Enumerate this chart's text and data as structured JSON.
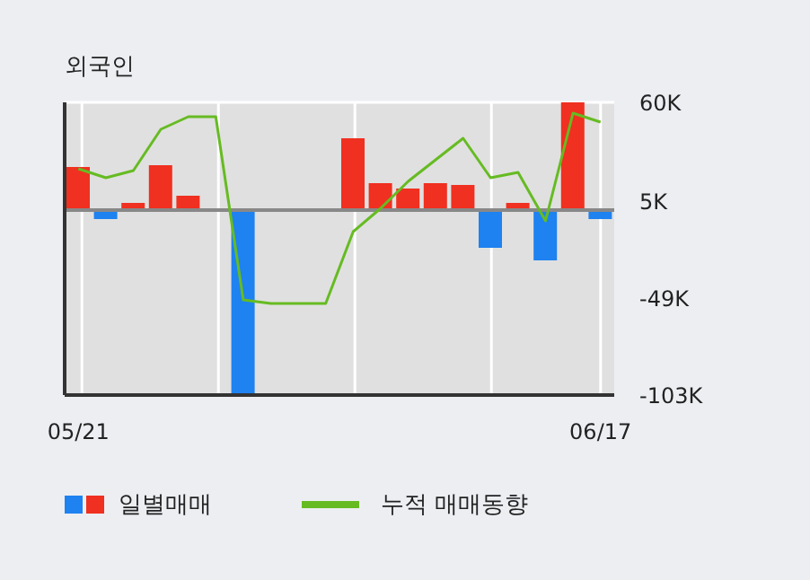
{
  "chart_data": {
    "type": "bar",
    "title": "외국인",
    "categories": [
      "05/21",
      null,
      null,
      null,
      null,
      null,
      null,
      null,
      null,
      null,
      null,
      null,
      null,
      null,
      null,
      null,
      null,
      null,
      null,
      "06/17"
    ],
    "series": [
      {
        "name": "일별매매",
        "colors": [
          "#f03020",
          "#1e82f0",
          "#f03020",
          "#f03020",
          "#f03020",
          "#f03020",
          "#1e82f0",
          "#f03020",
          "#f03020",
          "#f03020",
          "#f03020",
          "#f03020",
          "#f03020",
          "#f03020",
          "#f03020",
          "#1e82f0",
          "#f03020",
          "#1e82f0",
          "#f03020",
          "#1e82f0"
        ],
        "values": [
          24,
          -5,
          4,
          25,
          8,
          0,
          -103,
          0,
          0,
          0,
          40,
          15,
          12,
          15,
          14,
          -21,
          4,
          -28,
          60,
          -5
        ]
      },
      {
        "name": "누적 매매동향",
        "type": "line",
        "color": "#66bb22",
        "values": [
          23,
          18,
          22,
          45,
          52,
          52,
          -50,
          -52,
          -52,
          -52,
          -12,
          1,
          16,
          28,
          40,
          18,
          21,
          -6,
          54,
          49
        ]
      }
    ],
    "ylim": [
      -103,
      60
    ],
    "yticks": [
      {
        "value": 60,
        "label": "60K"
      },
      {
        "value": 5,
        "label": "5K"
      },
      {
        "value": -49,
        "label": "-49K"
      },
      {
        "value": -103,
        "label": "-103K"
      }
    ],
    "grid": true,
    "legend": "bottom",
    "marker": "none"
  }
}
